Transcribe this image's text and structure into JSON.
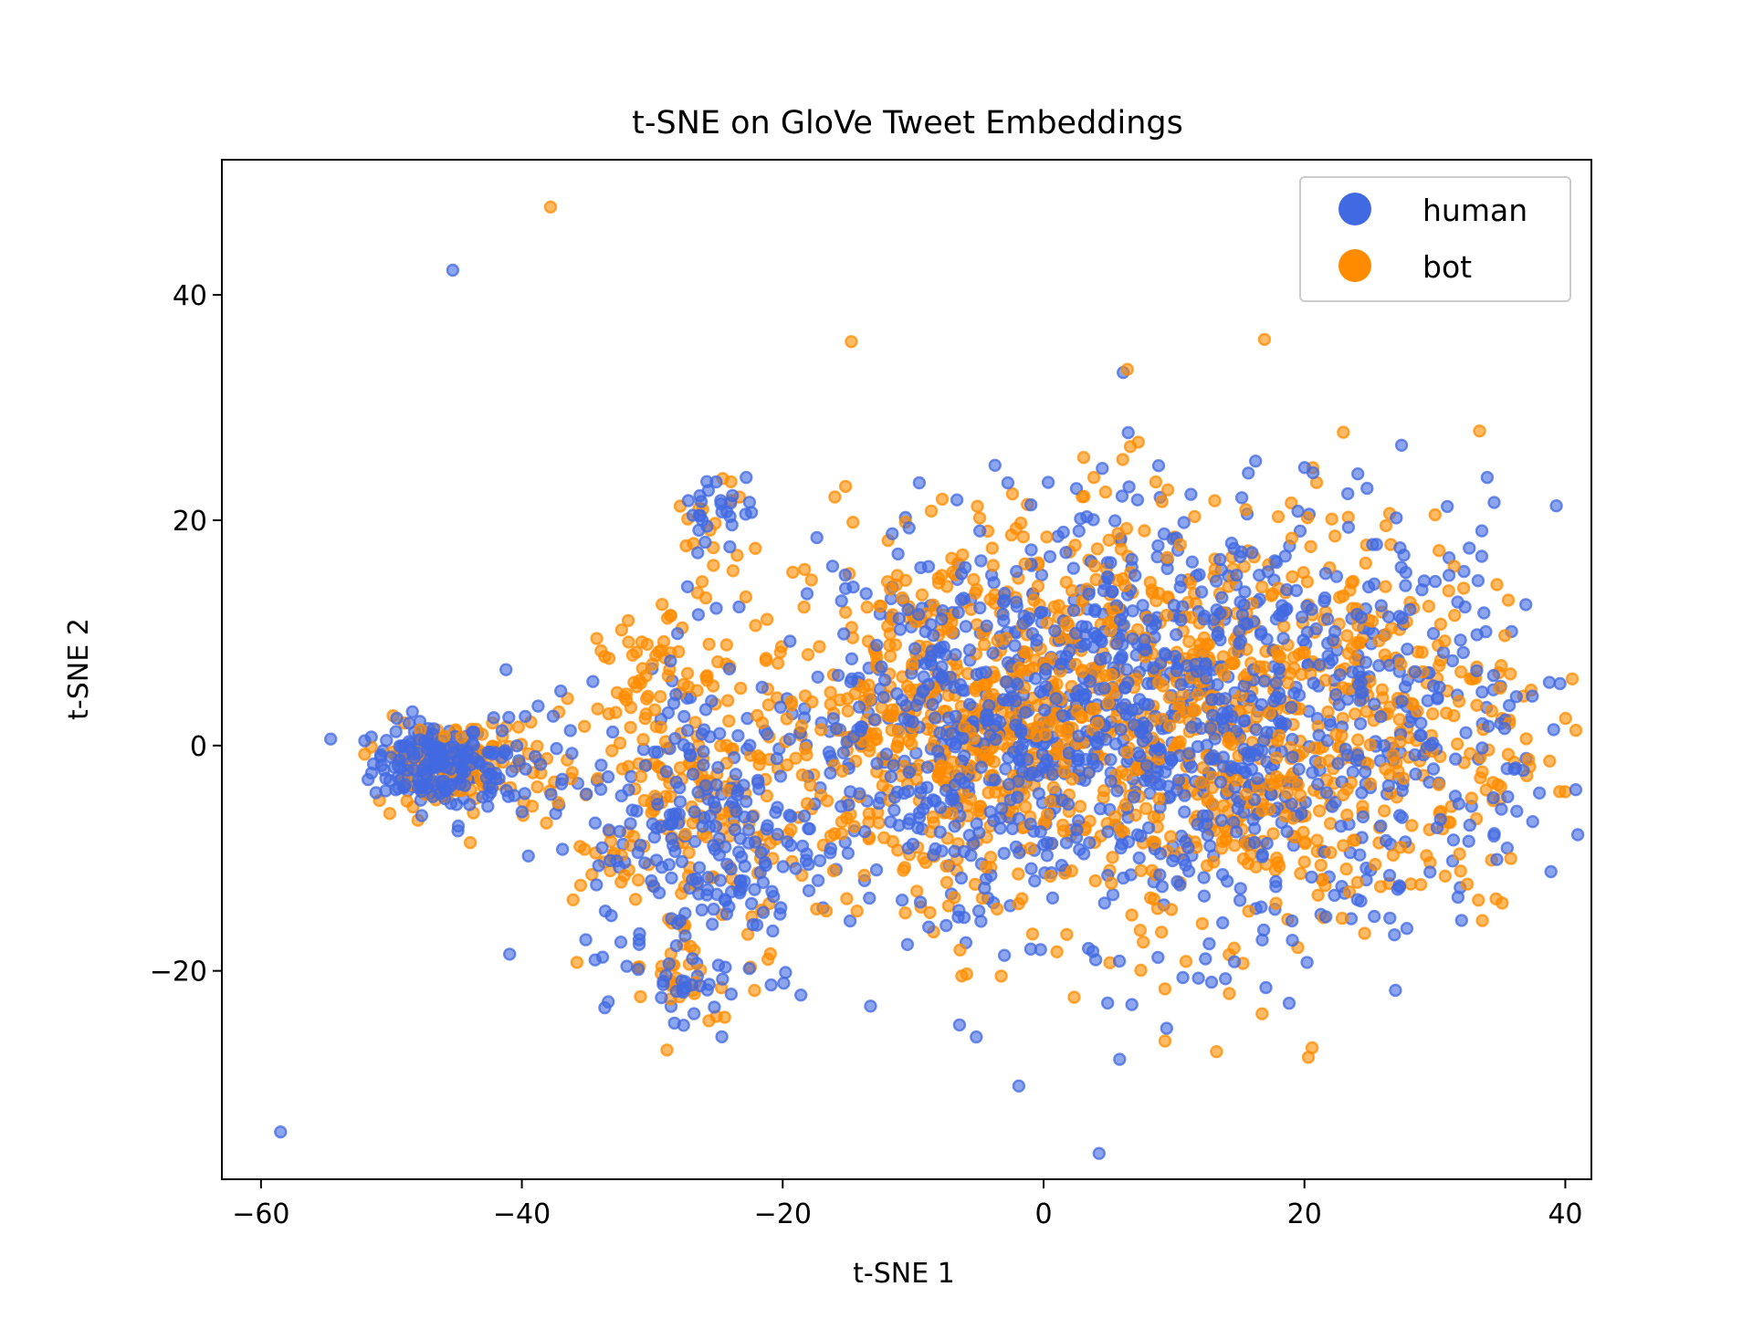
{
  "chart_data": {
    "type": "scatter",
    "title": "t-SNE on GloVe Tweet Embeddings",
    "xlabel": "t-SNE 1",
    "ylabel": "t-SNE 2",
    "xlim": [
      -63,
      42
    ],
    "ylim": [
      -38.5,
      52
    ],
    "xticks": [
      -60,
      -40,
      -20,
      0,
      20,
      40
    ],
    "yticks": [
      -20,
      0,
      20,
      40
    ],
    "xtick_labels": [
      "−60",
      "−40",
      "−20",
      "0",
      "20",
      "40"
    ],
    "ytick_labels": [
      "−20",
      "0",
      "20",
      "40"
    ],
    "grid": false,
    "legend_position": "top-right",
    "series": [
      {
        "name": "human",
        "color": "#4169e1",
        "points": [
          [
            -45.3,
            42.2
          ],
          [
            -58.5,
            -34.3
          ],
          [
            4.5,
            24.6
          ],
          [
            -11.6,
            18.8
          ],
          [
            -22.8,
            23.8
          ],
          [
            19.5,
            20.8
          ],
          [
            15.2,
            22.0
          ],
          [
            -26.8,
            -23.8
          ],
          [
            -39.5,
            -9.8
          ],
          [
            -33.6,
            -14.7
          ],
          [
            -20.7,
            -13.4
          ],
          [
            -36.9,
            -3.0
          ],
          [
            -27.3,
            14.1
          ],
          [
            -25.1,
            23.4
          ],
          [
            32.6,
            -8.5
          ],
          [
            26.9,
            -16.8
          ],
          [
            36.2,
            -2.0
          ],
          [
            12.7,
            -17.6
          ],
          [
            -49.4,
            -1.3
          ],
          [
            -41.0,
            2.5
          ],
          [
            -37.6,
            2.6
          ],
          [
            -4.8,
            -15.6
          ],
          [
            7.2,
            21.8
          ],
          [
            11.3,
            22.3
          ],
          [
            -28.6,
            7.5
          ]
        ],
        "clusters": [
          {
            "center": [
              -47.0,
              -1.5
            ],
            "spread": [
              2.2,
              1.8
            ],
            "count": 180
          },
          {
            "center": [
              -42.0,
              -2.5
            ],
            "spread": [
              2.8,
              2.2
            ],
            "count": 60
          },
          {
            "center": [
              12.0,
              2.0
            ],
            "spread": [
              13.5,
              9.5
            ],
            "count": 1050
          },
          {
            "center": [
              -7.0,
              1.0
            ],
            "spread": [
              7.0,
              7.0
            ],
            "count": 320
          },
          {
            "center": [
              -26.0,
              -8.0
            ],
            "spread": [
              4.5,
              7.0
            ],
            "count": 220
          },
          {
            "center": [
              -25.0,
              21.0
            ],
            "spread": [
              1.5,
              1.8
            ],
            "count": 25
          },
          {
            "center": [
              -27.5,
              -21.0
            ],
            "spread": [
              1.3,
              1.3
            ],
            "count": 20
          }
        ]
      },
      {
        "name": "bot",
        "color": "#ff8c00",
        "points": [
          [
            -37.8,
            47.8
          ],
          [
            9.3,
            -21.6
          ],
          [
            -30.8,
            9.2
          ],
          [
            -17.8,
            14.7
          ],
          [
            -25.9,
            13.1
          ],
          [
            37.0,
            0.6
          ],
          [
            35.0,
            5.1
          ],
          [
            -22.1,
            17.5
          ],
          [
            -24.6,
            23.7
          ],
          [
            -21.2,
            11.2
          ],
          [
            -35.5,
            -12.4
          ],
          [
            -35.2,
            1.7
          ],
          [
            8.6,
            23.4
          ],
          [
            -28.6,
            -22.5
          ],
          [
            -24.7,
            -21.5
          ],
          [
            22.1,
            20.1
          ],
          [
            -14.3,
            -14.7
          ],
          [
            -31.4,
            5.6
          ],
          [
            3.1,
            22.1
          ],
          [
            -4.9,
            20.2
          ]
        ],
        "clusters": [
          {
            "center": [
              -46.5,
              -1.5
            ],
            "spread": [
              2.4,
              1.9
            ],
            "count": 90
          },
          {
            "center": [
              -41.0,
              -2.0
            ],
            "spread": [
              2.8,
              2.2
            ],
            "count": 45
          },
          {
            "center": [
              12.0,
              2.0
            ],
            "spread": [
              13.5,
              9.5
            ],
            "count": 1000
          },
          {
            "center": [
              -7.0,
              2.0
            ],
            "spread": [
              7.0,
              7.0
            ],
            "count": 360
          },
          {
            "center": [
              -27.0,
              -6.0
            ],
            "spread": [
              4.5,
              7.5
            ],
            "count": 200
          },
          {
            "center": [
              -30.0,
              6.0
            ],
            "spread": [
              2.0,
              2.5
            ],
            "count": 40
          },
          {
            "center": [
              -25.5,
              19.5
            ],
            "spread": [
              1.5,
              2.0
            ],
            "count": 15
          },
          {
            "center": [
              -28.0,
              -20.5
            ],
            "spread": [
              1.3,
              1.3
            ],
            "count": 15
          }
        ]
      }
    ]
  }
}
